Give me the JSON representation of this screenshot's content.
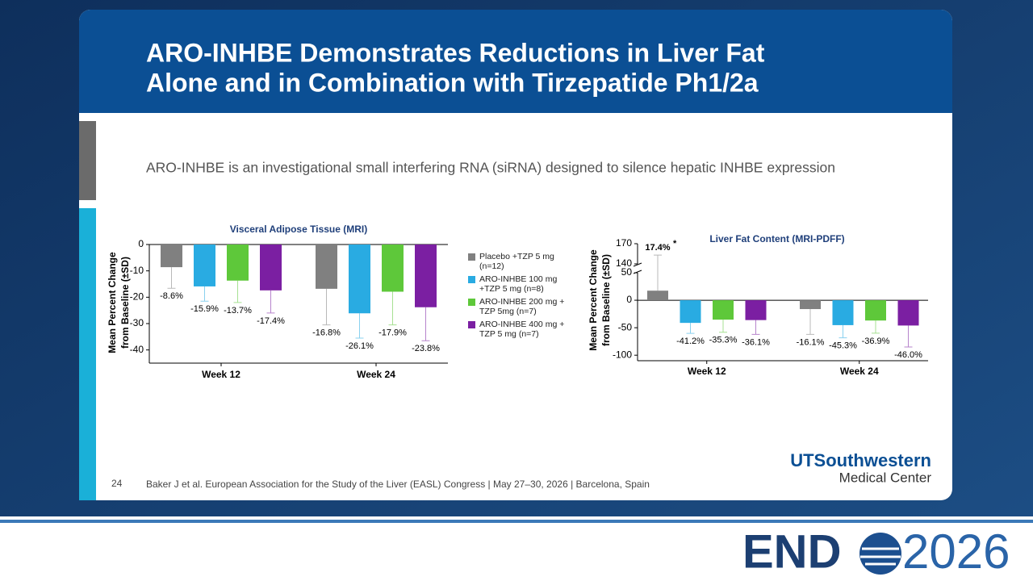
{
  "header": {
    "title": [
      "ARO-INHBE Demonstrates Reductions in Liver Fat",
      "Alone and in Combination with Tirzepatide Ph1/2a"
    ]
  },
  "subtitle": "ARO-INHBE is an investigational small interfering RNA (siRNA) designed to silence hepatic INHBE expression",
  "page_number": "24",
  "citation": "Baker J et al. European Association for the Study of the Liver (EASL) Congress | May 27–30, 2026 | Barcelona, Spain",
  "logo": {
    "line1": "UTSouthwestern",
    "line2": "Medical Center"
  },
  "event_logo": {
    "left": "END",
    "right": "2026"
  },
  "chart_data": [
    {
      "type": "bar",
      "title": "Visceral Adipose Tissue (MRI)",
      "ylabel": [
        "Mean  Percent Change",
        "from Baseline (±SD)"
      ],
      "categories": [
        "Week 12",
        "Week 24"
      ],
      "ylim": [
        -45,
        0
      ],
      "yticks": [
        0,
        -10,
        -20,
        -30,
        -40
      ],
      "grid": false,
      "series": [
        {
          "name": "Placebo +TZP 5 mg (n=12)",
          "color": "#808080",
          "values": [
            -8.6,
            -16.8
          ],
          "errors": [
            8,
            13.7
          ],
          "value_labels": [
            "-8.6%",
            "-16.8%"
          ]
        },
        {
          "name": "ARO-INHBE 100 mg +TZP 5 mg (n=8)",
          "color": "#29abe2",
          "values": [
            -15.9,
            -26.1
          ],
          "errors": [
            5.6,
            9.4
          ],
          "value_labels": [
            "-15.9%",
            "-26.1%"
          ]
        },
        {
          "name": "ARO-INHBE 200 mg + TZP 5mg (n=7)",
          "color": "#5ec83a",
          "values": [
            -13.7,
            -17.9
          ],
          "errors": [
            8.3,
            12.6
          ],
          "value_labels": [
            "-13.7%",
            "-17.9%"
          ]
        },
        {
          "name": "ARO-INHBE 400 mg + TZP 5 mg (n=7)",
          "color": "#7b1fa2",
          "values": [
            -17.4,
            -23.8
          ],
          "errors": [
            8.6,
            12.7
          ],
          "value_labels": [
            "-17.4%",
            "-23.8%"
          ]
        }
      ]
    },
    {
      "type": "bar",
      "title": "Liver Fat Content (MRI-PDFF)",
      "ylabel": [
        "Mean  Percent Change",
        "from Baseline (±SD)"
      ],
      "categories": [
        "Week 12",
        "Week 24"
      ],
      "ylim": [
        -110,
        170
      ],
      "ybreak": [
        50,
        140
      ],
      "yticks": [
        170,
        140,
        50,
        0,
        -50,
        -100
      ],
      "grid": false,
      "annotation": "*",
      "series": [
        {
          "color": "#808080",
          "values": [
            17.4,
            -16.1
          ],
          "errors": [
            135.6,
            46
          ],
          "value_labels": [
            "17.4%",
            "-16.1%"
          ]
        },
        {
          "color": "#29abe2",
          "values": [
            -41.2,
            -45.3
          ],
          "errors": [
            19,
            23
          ],
          "value_labels": [
            "-41.2%",
            "-45.3%"
          ]
        },
        {
          "color": "#5ec83a",
          "values": [
            -35.3,
            -36.9
          ],
          "errors": [
            23,
            23
          ],
          "value_labels": [
            "-35.3%",
            "-36.9%"
          ]
        },
        {
          "color": "#7b1fa2",
          "values": [
            -36.1,
            -46.0
          ],
          "errors": [
            26,
            39
          ],
          "value_labels": [
            "-36.1%",
            "-46.0%"
          ]
        }
      ]
    }
  ]
}
